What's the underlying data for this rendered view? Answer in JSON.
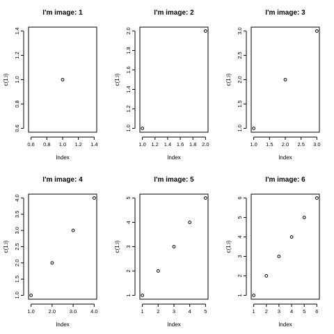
{
  "chart_data": [
    {
      "type": "scatter",
      "title": "I'm image: 1",
      "xlabel": "Index",
      "ylabel": "c(1:i)",
      "x": [
        1
      ],
      "y": [
        1
      ],
      "xlim": [
        0.6,
        1.4
      ],
      "ylim": [
        0.6,
        1.4
      ],
      "xticks": [
        "0.6",
        "0.8",
        "1.0",
        "1.2",
        "1.4"
      ],
      "yticks": [
        "0.6",
        "0.8",
        "1.0",
        "1.2",
        "1.4"
      ],
      "grid": false
    },
    {
      "type": "scatter",
      "title": "I'm image: 2",
      "xlabel": "Index",
      "ylabel": "c(1:i)",
      "x": [
        1,
        2
      ],
      "y": [
        1,
        2
      ],
      "xlim": [
        1.0,
        2.0
      ],
      "ylim": [
        1.0,
        2.0
      ],
      "xticks": [
        "1.0",
        "1.2",
        "1.4",
        "1.6",
        "1.8",
        "2.0"
      ],
      "yticks": [
        "1.0",
        "1.2",
        "1.4",
        "1.6",
        "1.8",
        "2.0"
      ],
      "grid": false
    },
    {
      "type": "scatter",
      "title": "I'm image: 3",
      "xlabel": "Index",
      "ylabel": "c(1:i)",
      "x": [
        1,
        2,
        3
      ],
      "y": [
        1,
        2,
        3
      ],
      "xlim": [
        1.0,
        3.0
      ],
      "ylim": [
        1.0,
        3.0
      ],
      "xticks": [
        "1.0",
        "1.5",
        "2.0",
        "2.5",
        "3.0"
      ],
      "yticks": [
        "1.0",
        "1.5",
        "2.0",
        "2.5",
        "3.0"
      ],
      "grid": false
    },
    {
      "type": "scatter",
      "title": "I'm image: 4",
      "xlabel": "Index",
      "ylabel": "c(1:i)",
      "x": [
        1,
        2,
        3,
        4
      ],
      "y": [
        1,
        2,
        3,
        4
      ],
      "xlim": [
        1.0,
        4.0
      ],
      "ylim": [
        1.0,
        4.0
      ],
      "xticks": [
        "1.0",
        "2.0",
        "3.0",
        "4.0"
      ],
      "yticks": [
        "1.0",
        "1.5",
        "2.0",
        "2.5",
        "3.0",
        "3.5",
        "4.0"
      ],
      "grid": false
    },
    {
      "type": "scatter",
      "title": "I'm image: 5",
      "xlabel": "Index",
      "ylabel": "c(1:i)",
      "x": [
        1,
        2,
        3,
        4,
        5
      ],
      "y": [
        1,
        2,
        3,
        4,
        5
      ],
      "xlim": [
        1,
        5
      ],
      "ylim": [
        1,
        5
      ],
      "xticks": [
        "1",
        "2",
        "3",
        "4",
        "5"
      ],
      "yticks": [
        "1",
        "2",
        "3",
        "4",
        "5"
      ],
      "grid": false
    },
    {
      "type": "scatter",
      "title": "I'm image: 6",
      "xlabel": "Index",
      "ylabel": "c(1:i)",
      "x": [
        1,
        2,
        3,
        4,
        5,
        6
      ],
      "y": [
        1,
        2,
        3,
        4,
        5,
        6
      ],
      "xlim": [
        1,
        6
      ],
      "ylim": [
        1,
        6
      ],
      "xticks": [
        "1",
        "2",
        "3",
        "4",
        "5",
        "6"
      ],
      "yticks": [
        "1",
        "2",
        "3",
        "4",
        "5",
        "6"
      ],
      "grid": false
    }
  ]
}
